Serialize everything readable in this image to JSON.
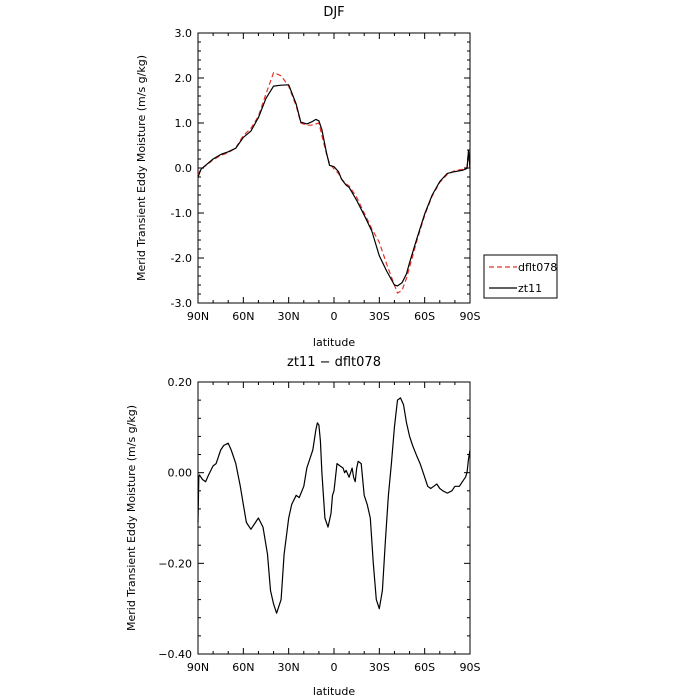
{
  "chart_data": [
    {
      "type": "line",
      "title": "DJF",
      "xlabel": "latitude",
      "ylabel": "Merid Transient Eddy Moisture  (m/s g/kg)",
      "xlim": [
        90,
        -90
      ],
      "ylim": [
        -3.0,
        3.0
      ],
      "x_ticks": [
        90,
        60,
        30,
        0,
        -30,
        -60,
        -90
      ],
      "x_tick_labels": [
        "90N",
        "60N",
        "30N",
        "0",
        "30S",
        "60S",
        "90S"
      ],
      "y_ticks": [
        3.0,
        2.0,
        1.0,
        0.0,
        -1.0,
        -2.0,
        -3.0
      ],
      "y_tick_labels": [
        "3.0",
        "2.0",
        "1.0",
        "0.0",
        "-1.0",
        "-2.0",
        "-3.0"
      ],
      "legend_position": "right",
      "series": [
        {
          "name": "dflt078",
          "color": "#e8302a",
          "dash": "dashed",
          "x": [
            90,
            88,
            85,
            80,
            75,
            70,
            65,
            60,
            55,
            50,
            45,
            40,
            35,
            30,
            25,
            22,
            18,
            15,
            12,
            10,
            8,
            5,
            3,
            0,
            -3,
            -5,
            -8,
            -10,
            -15,
            -20,
            -25,
            -30,
            -35,
            -40,
            -42,
            -45,
            -48,
            -50,
            -55,
            -60,
            -65,
            -70,
            -75,
            -80,
            -85,
            -88,
            -89,
            -90
          ],
          "y": [
            -0.15,
            -0.02,
            0.05,
            0.18,
            0.28,
            0.34,
            0.45,
            0.72,
            0.88,
            1.15,
            1.65,
            2.12,
            2.05,
            1.82,
            1.38,
            1.0,
            0.95,
            0.95,
            0.98,
            1.0,
            0.72,
            0.32,
            0.1,
            -0.02,
            -0.12,
            -0.25,
            -0.35,
            -0.4,
            -0.65,
            -1.0,
            -1.35,
            -1.65,
            -2.15,
            -2.6,
            -2.78,
            -2.72,
            -2.45,
            -2.2,
            -1.6,
            -1.05,
            -0.62,
            -0.32,
            -0.14,
            -0.06,
            -0.03,
            0.02,
            0.38,
            0.02
          ]
        },
        {
          "name": "zt11",
          "color": "#000000",
          "dash": "solid",
          "x": [
            90,
            88,
            85,
            80,
            75,
            70,
            65,
            60,
            55,
            50,
            45,
            40,
            35,
            30,
            25,
            22,
            18,
            15,
            12,
            10,
            8,
            5,
            3,
            0,
            -3,
            -5,
            -8,
            -10,
            -15,
            -20,
            -25,
            -30,
            -35,
            -40,
            -42,
            -45,
            -48,
            -50,
            -55,
            -60,
            -65,
            -70,
            -75,
            -80,
            -85,
            -88,
            -89,
            -90
          ],
          "y": [
            -0.2,
            -0.03,
            0.06,
            0.2,
            0.3,
            0.36,
            0.44,
            0.68,
            0.82,
            1.12,
            1.55,
            1.82,
            1.84,
            1.85,
            1.42,
            1.02,
            0.98,
            1.02,
            1.08,
            1.05,
            0.85,
            0.35,
            0.06,
            0.03,
            -0.08,
            -0.25,
            -0.38,
            -0.43,
            -0.72,
            -1.05,
            -1.4,
            -1.95,
            -2.3,
            -2.6,
            -2.62,
            -2.55,
            -2.35,
            -2.1,
            -1.55,
            -1.02,
            -0.6,
            -0.3,
            -0.12,
            -0.08,
            -0.05,
            -0.01,
            0.38,
            -0.01
          ]
        }
      ]
    },
    {
      "type": "line",
      "title": "zt11 − dflt078",
      "xlabel": "latitude",
      "ylabel": "Merid Transient Eddy Moisture  (m/s g/kg)",
      "xlim": [
        90,
        -90
      ],
      "ylim": [
        -0.4,
        0.2
      ],
      "x_ticks": [
        90,
        60,
        30,
        0,
        -30,
        -60,
        -90
      ],
      "x_tick_labels": [
        "90N",
        "60N",
        "30N",
        "0",
        "30S",
        "60S",
        "90S"
      ],
      "y_ticks": [
        0.2,
        0.0,
        -0.2,
        -0.4
      ],
      "y_tick_labels": [
        "0.20",
        "0.00",
        "−0.20",
        "−0.40"
      ],
      "series": [
        {
          "color": "#000000",
          "dash": "solid",
          "x": [
            90,
            89.5,
            89,
            87,
            85,
            83,
            80,
            78,
            75,
            73,
            70,
            68,
            65,
            62,
            60,
            58,
            55,
            52,
            50,
            47,
            44,
            42,
            40,
            38,
            35,
            33,
            30,
            28,
            25,
            23,
            20,
            18,
            16,
            14,
            12,
            11,
            10,
            9,
            8,
            6,
            4,
            2,
            1,
            0,
            -1,
            -2,
            -4,
            -6,
            -7,
            -8,
            -10,
            -12,
            -13,
            -14,
            -15,
            -16,
            -18,
            -20,
            -22,
            -24,
            -26,
            -28,
            -30,
            -32,
            -34,
            -36,
            -38,
            -40,
            -42,
            -44,
            -46,
            -48,
            -50,
            -52,
            -55,
            -57,
            -60,
            -62,
            -64,
            -66,
            -68,
            -70,
            -72,
            -75,
            -78,
            -80,
            -83,
            -85,
            -87,
            -88,
            -89,
            -90
          ],
          "y": [
            -0.11,
            -0.01,
            -0.005,
            -0.015,
            -0.02,
            -0.005,
            0.015,
            0.02,
            0.05,
            0.06,
            0.065,
            0.05,
            0.02,
            -0.03,
            -0.07,
            -0.11,
            -0.125,
            -0.11,
            -0.1,
            -0.12,
            -0.18,
            -0.26,
            -0.29,
            -0.31,
            -0.28,
            -0.18,
            -0.1,
            -0.07,
            -0.05,
            -0.055,
            -0.03,
            0.01,
            0.03,
            0.05,
            0.095,
            0.11,
            0.105,
            0.07,
            0.0,
            -0.1,
            -0.12,
            -0.09,
            -0.05,
            -0.04,
            -0.01,
            0.02,
            0.015,
            0.01,
            0.0,
            0.005,
            -0.01,
            0.01,
            -0.01,
            -0.02,
            0.01,
            0.025,
            0.02,
            -0.05,
            -0.07,
            -0.1,
            -0.2,
            -0.28,
            -0.3,
            -0.26,
            -0.15,
            -0.05,
            0.02,
            0.1,
            0.16,
            0.165,
            0.15,
            0.11,
            0.08,
            0.06,
            0.035,
            0.02,
            -0.01,
            -0.03,
            -0.035,
            -0.03,
            -0.025,
            -0.035,
            -0.04,
            -0.045,
            -0.04,
            -0.03,
            -0.03,
            -0.02,
            -0.01,
            0.0,
            0.03,
            0.05
          ]
        }
      ]
    }
  ]
}
